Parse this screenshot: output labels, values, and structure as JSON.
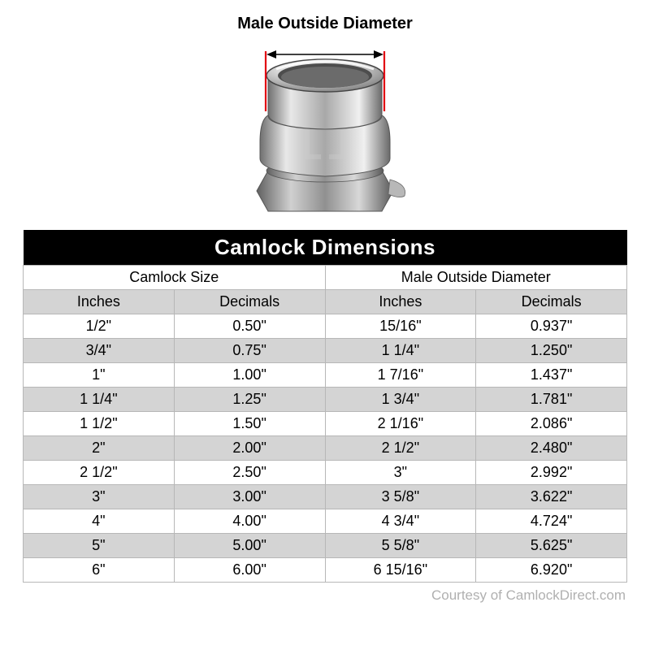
{
  "diagram": {
    "label": "Male Outside Diameter",
    "indicator_color": "#e20613",
    "arrow_color": "#000000"
  },
  "table": {
    "title": "Camlock Dimensions",
    "group_headers": [
      "Camlock Size",
      "Male Outside Diameter"
    ],
    "unit_headers": [
      "Inches",
      "Decimals",
      "Inches",
      "Decimals"
    ],
    "title_bg": "#000000",
    "title_fg": "#ffffff",
    "header_gray": "#d4d4d4",
    "row_white": "#ffffff",
    "row_gray": "#d4d4d4",
    "border_color": "#b7b7b7",
    "rows": [
      [
        "1/2\"",
        "0.50\"",
        "15/16\"",
        "0.937\""
      ],
      [
        "3/4\"",
        "0.75\"",
        "1 1/4\"",
        "1.250\""
      ],
      [
        "1\"",
        "1.00\"",
        "1 7/16\"",
        "1.437\""
      ],
      [
        "1 1/4\"",
        "1.25\"",
        "1 3/4\"",
        "1.781\""
      ],
      [
        "1 1/2\"",
        "1.50\"",
        "2 1/16\"",
        "2.086\""
      ],
      [
        "2\"",
        "2.00\"",
        "2 1/2\"",
        "2.480\""
      ],
      [
        "2 1/2\"",
        "2.50\"",
        "3\"",
        "2.992\""
      ],
      [
        "3\"",
        "3.00\"",
        "3 5/8\"",
        "3.622\""
      ],
      [
        "4\"",
        "4.00\"",
        "4 3/4\"",
        "4.724\""
      ],
      [
        "5\"",
        "5.00\"",
        "5 5/8\"",
        "5.625\""
      ],
      [
        "6\"",
        "6.00\"",
        "6 15/16\"",
        "6.920\""
      ]
    ]
  },
  "credit": "Courtesy of CamlockDirect.com"
}
